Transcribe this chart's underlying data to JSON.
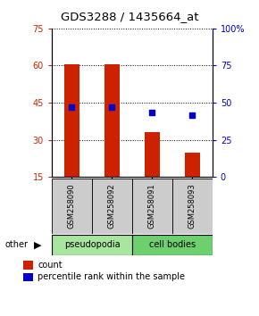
{
  "title": "GDS3288 / 1435664_at",
  "samples": [
    "GSM258090",
    "GSM258092",
    "GSM258091",
    "GSM258093"
  ],
  "groups": [
    "pseudopodia",
    "pseudopodia",
    "cell bodies",
    "cell bodies"
  ],
  "group_labels": [
    "pseudopodia",
    "cell bodies"
  ],
  "group_colors": [
    "#a8e6a0",
    "#6dcf6d"
  ],
  "bar_values": [
    60.5,
    60.5,
    33.0,
    25.0
  ],
  "percentile_values": [
    47.0,
    47.0,
    43.5,
    41.5
  ],
  "bar_bottom": 15,
  "ylim_left": [
    15,
    75
  ],
  "ylim_right": [
    0,
    100
  ],
  "yticks_left": [
    15,
    30,
    45,
    60,
    75
  ],
  "yticks_right": [
    0,
    25,
    50,
    75,
    100
  ],
  "ytick_labels_right": [
    "0",
    "25",
    "50",
    "75",
    "100%"
  ],
  "bar_color": "#CC2200",
  "percentile_color": "#0000CC",
  "bg_color": "#ffffff",
  "plot_bg": "#ffffff",
  "legend_count_label": "count",
  "legend_pct_label": "percentile rank within the sample",
  "other_label": "other",
  "title_fontsize": 9.5,
  "tick_fontsize": 7,
  "label_fontsize": 7
}
